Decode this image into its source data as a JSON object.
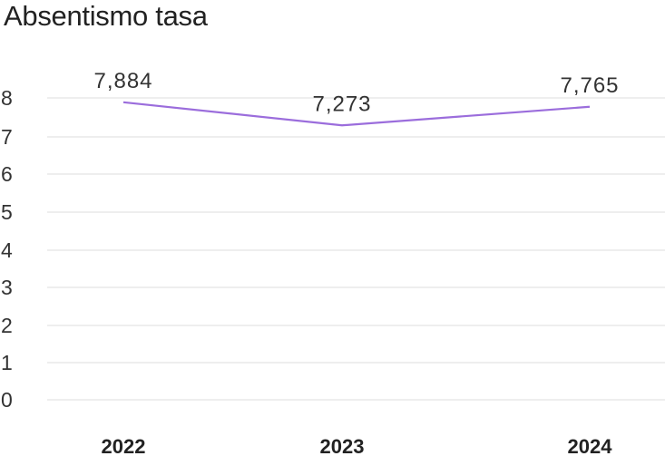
{
  "chart_data": {
    "type": "line",
    "title": "Absentismo tasa",
    "categories": [
      "2022",
      "2023",
      "2024"
    ],
    "series": [
      {
        "values": [
          7.884,
          7.273,
          7.765
        ],
        "labels": [
          "7,884",
          "7,273",
          "7,765"
        ],
        "color": "#9b6ddc"
      }
    ],
    "ylim": [
      0,
      8
    ],
    "yticks": [
      "0",
      "1",
      "2",
      "3",
      "4",
      "5",
      "6",
      "7",
      "8"
    ],
    "grid": true,
    "xlabel": "",
    "ylabel": ""
  }
}
